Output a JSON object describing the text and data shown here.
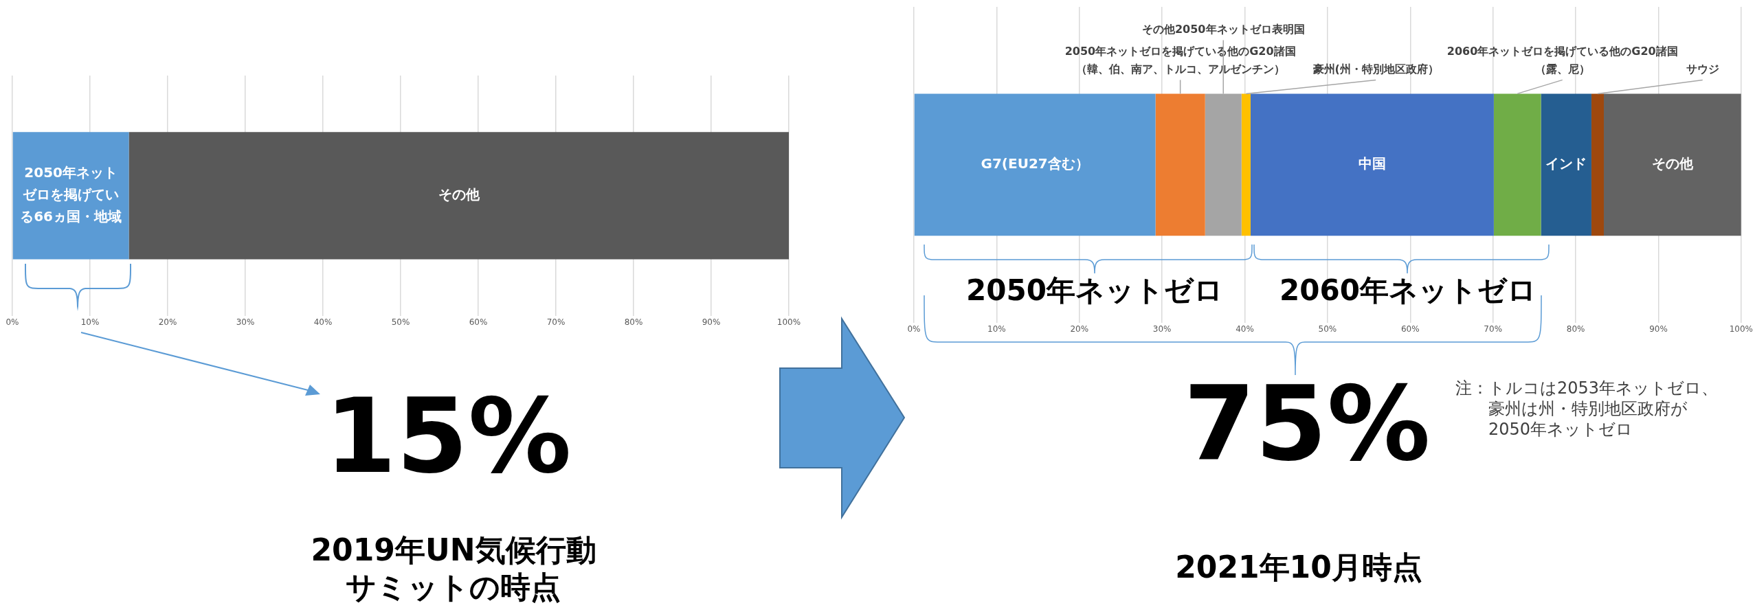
{
  "chart_data": [
    {
      "type": "bar",
      "orientation": "horizontal",
      "stacked": true,
      "categories": [
        null
      ],
      "xlim": [
        0,
        100
      ],
      "xticks": [
        {
          "value": 0,
          "label": "0%"
        },
        {
          "value": 10,
          "label": "10%"
        },
        {
          "value": 20,
          "label": "20%"
        },
        {
          "value": 30,
          "label": "30%"
        },
        {
          "value": 40,
          "label": "40%"
        },
        {
          "value": 50,
          "label": "50%"
        },
        {
          "value": 60,
          "label": "60%"
        },
        {
          "value": 70,
          "label": "70%"
        },
        {
          "value": 80,
          "label": "80%"
        },
        {
          "value": 90,
          "label": "90%"
        },
        {
          "value": 100,
          "label": "100%"
        }
      ],
      "grid": "x",
      "tick_labels": "x",
      "series": [
        {
          "name": "2050年ネットゼロを掲げている66ヵ国・地域",
          "color": "#5b9bd5",
          "values": [
            15
          ]
        },
        {
          "name": "その他",
          "color": "#595959",
          "values": [
            85
          ]
        }
      ],
      "annotations": [
        "15%",
        "2019年UN気候行動サミットの時点"
      ]
    },
    {
      "type": "bar",
      "orientation": "horizontal",
      "stacked": true,
      "categories": [
        null
      ],
      "xlim": [
        0,
        100
      ],
      "xticks": [
        {
          "value": 0,
          "label": "0%"
        },
        {
          "value": 10,
          "label": "10%"
        },
        {
          "value": 20,
          "label": "20%"
        },
        {
          "value": 30,
          "label": "30%"
        },
        {
          "value": 40,
          "label": "40%"
        },
        {
          "value": 50,
          "label": "50%"
        },
        {
          "value": 60,
          "label": "60%"
        },
        {
          "value": 70,
          "label": "70%"
        },
        {
          "value": 80,
          "label": "80%"
        },
        {
          "value": 90,
          "label": "90%"
        },
        {
          "value": 100,
          "label": "100%"
        }
      ],
      "grid": "x",
      "tick_labels": "x",
      "series": [
        {
          "name": "G7(EU27含む）",
          "color": "#5b9bd5",
          "values": [
            29.2
          ]
        },
        {
          "name": "2050年ネットゼロを掲げている他のG20諸国（韓、伯、南ア、トルコ、アルゼンチン）",
          "color": "#ed7d31",
          "values": [
            6
          ]
        },
        {
          "name": "その他2050年ネットゼロ表明国",
          "color": "#a5a5a5",
          "values": [
            4.4
          ]
        },
        {
          "name": "豪州(州・特別地区政府）",
          "color": "#ffc000",
          "values": [
            1.1
          ]
        },
        {
          "name": "中国",
          "color": "#4472c4",
          "values": [
            29.4
          ]
        },
        {
          "name": "2060年ネットゼロを掲げている他のG20諸国（露、尼）",
          "color": "#70ad47",
          "values": [
            5.7
          ]
        },
        {
          "name": "インド",
          "color": "#255e91",
          "values": [
            6.1
          ]
        },
        {
          "name": "サウジ",
          "color": "#9e480e",
          "values": [
            1.5
          ]
        },
        {
          "name": "その他",
          "color": "#636363",
          "values": [
            16.6
          ]
        }
      ],
      "annotations": [
        "2050年ネットゼロ",
        "2060年ネットゼロ",
        "75%",
        "2021年10月時点",
        "注：トルコは2053年ネットゼロ、豪州は州・特別地区政府が2050年ネットゼロ"
      ]
    }
  ]
}
